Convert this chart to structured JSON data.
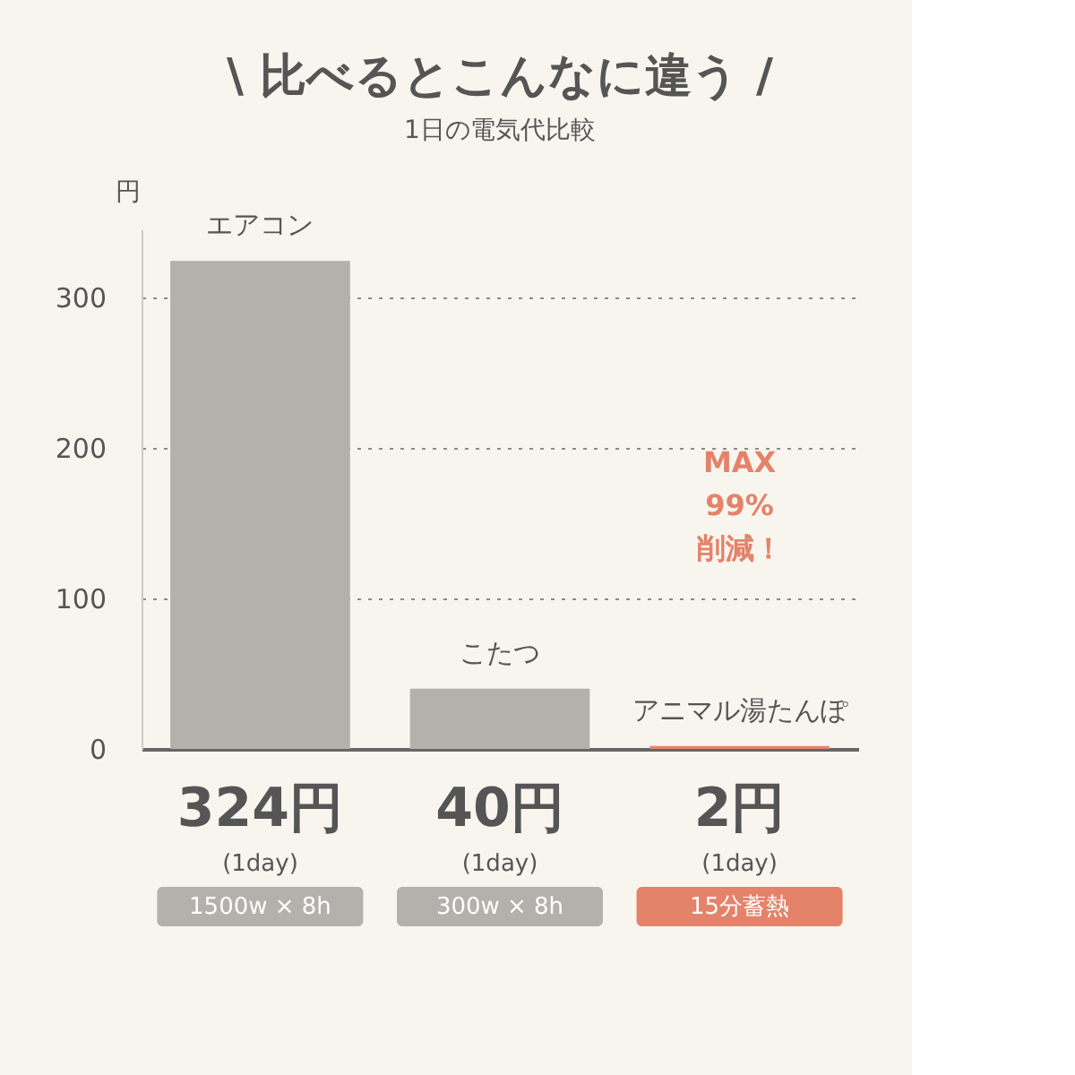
{
  "chart_data": {
    "type": "bar",
    "title": "\\ 比べるとこんなに違う /",
    "subtitle": "1日の電気代比較",
    "ylabel": "円",
    "categories": [
      "エアコン",
      "こたつ",
      "アニマル湯たんぽ"
    ],
    "values": [
      324,
      40,
      2
    ],
    "colors": [
      "#b3b1ab",
      "#b3b1ab",
      "#e5826a"
    ],
    "value_labels": [
      "324円",
      "40円",
      "2円"
    ],
    "ylim": [
      0,
      345
    ],
    "yticks": [
      0,
      100,
      200,
      300
    ],
    "grid": "y",
    "annotations": [
      "(1day)",
      "1500w × 8h",
      "(1day)",
      "300w × 8h",
      "(1day)",
      "15分蓄熱",
      "MAX\n99%\n削減！"
    ]
  }
}
